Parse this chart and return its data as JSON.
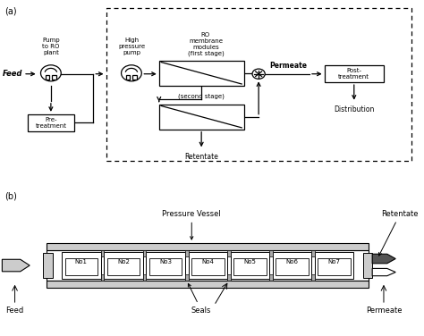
{
  "bg_color": "#ffffff",
  "light_gray": "#cccccc",
  "dark_gray": "#555555",
  "mid_gray": "#aaaaaa",
  "panel_a_label": "(a)",
  "panel_b_label": "(b)",
  "ro_label": "RO\nmembrane\nmodules\n(first stage)",
  "second_stage_label": "(second stage)",
  "hp_pump_label": "High\npressure\npump",
  "pump_to_ro_label": "Pump\nto RO\nplant",
  "feed_label": "Feed",
  "pre_treat_label": "Pre-\ntreatment",
  "permeate_label": "Permeate",
  "retentate_label": "Retentate",
  "post_treat_label": "Post-\ntreatment",
  "distrib_label": "Distribution",
  "pv_label": "Pressure Vessel",
  "seals_label": "Seals",
  "feed_b_label": "Feed",
  "retentate_b_label": "Retentate",
  "permeate_b_label": "Permeate",
  "membrane_labels": [
    "No1",
    "No2",
    "No3",
    "No4",
    "No5",
    "No6",
    "No7"
  ]
}
